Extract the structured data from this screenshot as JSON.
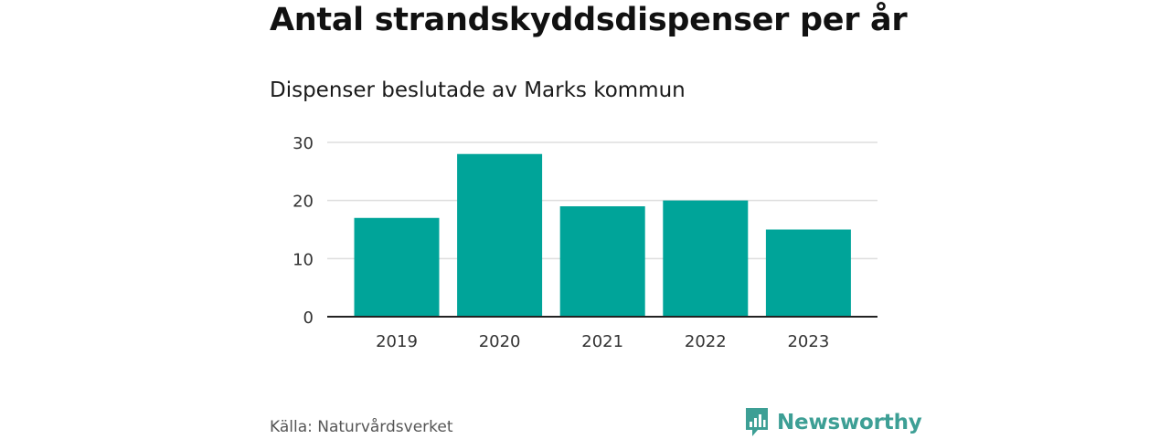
{
  "chart_data": {
    "type": "bar",
    "title": "Antal strandskyddsdispenser per år",
    "subtitle": "Dispenser beslutade av Marks kommun",
    "categories": [
      "2019",
      "2020",
      "2021",
      "2022",
      "2023"
    ],
    "values": [
      17,
      28,
      19,
      20,
      15
    ],
    "yticks": [
      "0",
      "10",
      "20",
      "30"
    ],
    "ylim": [
      0,
      30
    ],
    "grid": true,
    "xlabel": "",
    "ylabel": "",
    "bar_color": "#00a499",
    "grid_color": "#dddddd",
    "axis_color": "#222222"
  },
  "footer": {
    "source": "Källa: Naturvårdsverket",
    "brand": "Newsworthy",
    "brand_color": "#3d9f95",
    "logo_icon": "bar-chart-speech-bubble-icon"
  }
}
